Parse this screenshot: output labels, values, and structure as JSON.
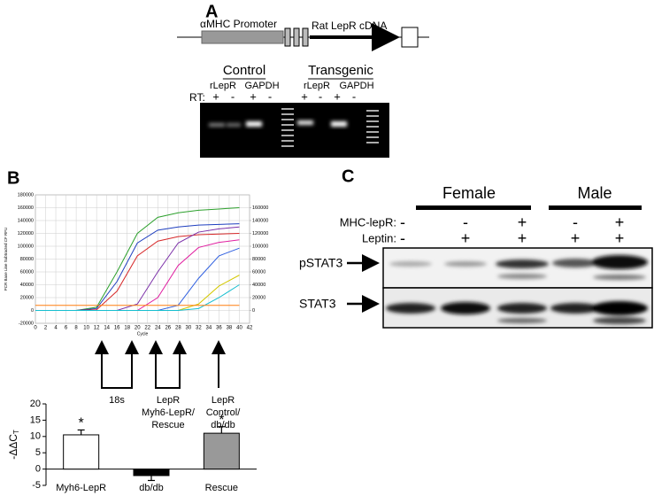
{
  "panels": {
    "a": "A",
    "b": "B",
    "c": "C"
  },
  "construct": {
    "promoter": "αMHC Promoter",
    "cdna": "Rat LepR cDNA"
  },
  "gel": {
    "groups": [
      "Control",
      "Transgenic"
    ],
    "lanes": [
      "rLepR",
      "GAPDH",
      "rLepR",
      "GAPDH"
    ],
    "rt_label": "RT:",
    "rt": [
      "+",
      "-",
      "+",
      "-",
      "+",
      "-",
      "+",
      "-"
    ]
  },
  "chart_data": [
    {
      "type": "line",
      "ylabel": "PCR Base Line Subtracted CF RFU",
      "xlabel": "Cycle",
      "xlim": [
        0,
        42
      ],
      "xticks": [
        0,
        2,
        4,
        6,
        8,
        10,
        12,
        14,
        16,
        18,
        20,
        22,
        24,
        26,
        28,
        30,
        32,
        34,
        36,
        38,
        40,
        42
      ],
      "ylim": [
        -20000,
        180000
      ],
      "yticks": [
        -20000,
        0,
        20000,
        40000,
        60000,
        80000,
        100000,
        120000,
        140000,
        160000,
        180000
      ],
      "y2lim": [
        -20000,
        180000
      ],
      "y2ticks": [
        0,
        20000,
        40000,
        60000,
        80000,
        100000,
        120000,
        140000,
        160000
      ],
      "grid": true,
      "x": [
        0,
        4,
        8,
        12,
        16,
        20,
        24,
        28,
        32,
        36,
        40
      ],
      "series": [
        {
          "color": "#2ca02c",
          "values": [
            0,
            0,
            0,
            5000,
            60000,
            120000,
            145000,
            152000,
            156000,
            158000,
            160000
          ]
        },
        {
          "color": "#1f3fbf",
          "values": [
            0,
            0,
            0,
            3000,
            45000,
            105000,
            125000,
            130000,
            133000,
            134000,
            135000
          ]
        },
        {
          "color": "#d62728",
          "values": [
            0,
            0,
            0,
            1000,
            30000,
            85000,
            108000,
            115000,
            118000,
            119000,
            120000
          ]
        },
        {
          "color": "#7b2fa8",
          "values": [
            0,
            0,
            0,
            0,
            0,
            10000,
            60000,
            105000,
            122000,
            127000,
            130000
          ]
        },
        {
          "color": "#e01ea0",
          "values": [
            0,
            0,
            0,
            0,
            0,
            0,
            20000,
            70000,
            98000,
            106000,
            110000
          ]
        },
        {
          "color": "#3060e0",
          "values": [
            0,
            0,
            0,
            0,
            0,
            0,
            0,
            8000,
            50000,
            85000,
            97000
          ]
        },
        {
          "color": "#d4c800",
          "values": [
            0,
            0,
            0,
            0,
            0,
            0,
            0,
            0,
            10000,
            38000,
            55000
          ]
        },
        {
          "color": "#17becf",
          "values": [
            0,
            0,
            0,
            0,
            0,
            0,
            0,
            0,
            3000,
            20000,
            40000
          ]
        },
        {
          "color": "#ff7f0e",
          "values": [
            8000,
            8000,
            8000,
            8000,
            8000,
            8000,
            8000,
            8000,
            8000,
            8000,
            8000
          ]
        }
      ]
    },
    {
      "type": "bar",
      "ylabel": "-ΔΔC",
      "ylabel_sub": "T",
      "categories": [
        "Myh6-LepR",
        "db/db",
        "Rescue"
      ],
      "values": [
        10.5,
        -2,
        11
      ],
      "errors": [
        1.5,
        1.5,
        2
      ],
      "colors": [
        "#ffffff",
        "#000000",
        "#999999"
      ],
      "value_annotations": [
        "*",
        null,
        "*"
      ],
      "ylim": [
        -5,
        20
      ],
      "yticks": [
        -5,
        0,
        5,
        10,
        15,
        20
      ]
    }
  ],
  "qpcr_labels": [
    [
      "18s"
    ],
    [
      "LepR",
      "Myh6-LepR/",
      "Rescue"
    ],
    [
      "LepR",
      "Control/",
      "db/db"
    ]
  ],
  "blot": {
    "groups": [
      "Female",
      "Male"
    ],
    "rows": [
      "MHC-lepR:",
      "Leptin:"
    ],
    "mhc": [
      "-",
      "-",
      "+",
      "-",
      "+"
    ],
    "leptin": [
      "-",
      "+",
      "+",
      "+",
      "+"
    ],
    "bands": [
      "pSTAT3",
      "STAT3"
    ]
  }
}
